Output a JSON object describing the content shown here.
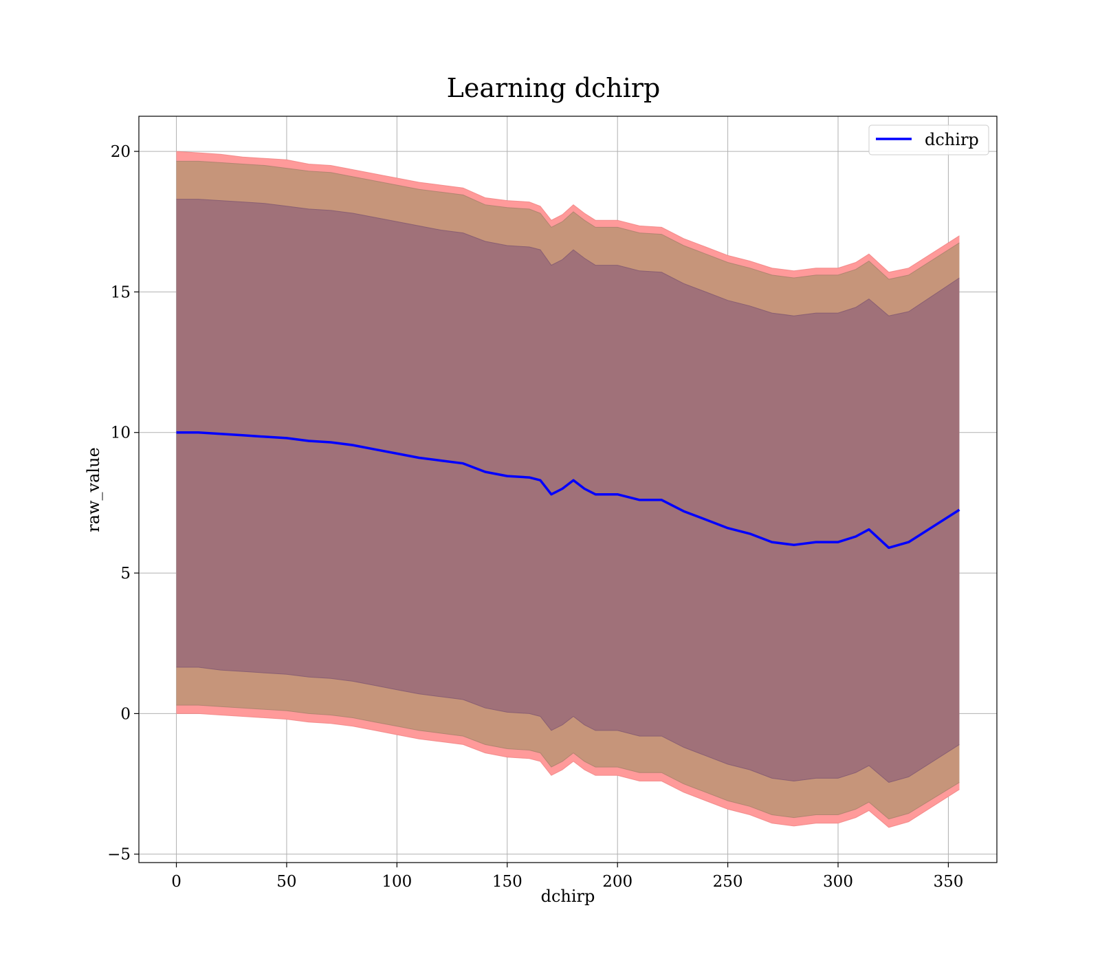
{
  "chart_data": {
    "type": "line",
    "title": "Learning dchirp",
    "xlabel": "dchirp",
    "ylabel": "raw_value",
    "xlim": [
      -17,
      372
    ],
    "ylim": [
      -5.3,
      21.25
    ],
    "xticks": [
      0,
      50,
      100,
      150,
      200,
      250,
      300,
      350
    ],
    "yticks": [
      -5,
      0,
      5,
      10,
      15,
      20
    ],
    "xtick_labels": [
      "0",
      "50",
      "100",
      "150",
      "200",
      "250",
      "300",
      "350"
    ],
    "ytick_labels": [
      "−5",
      "0",
      "5",
      "10",
      "15",
      "20"
    ],
    "grid": true,
    "legend": {
      "position": "top-right",
      "entries": [
        "dchirp"
      ]
    },
    "colors": {
      "line": "#0000ff",
      "outer_band": "#ff9a9a",
      "middle_band": "#c6957a",
      "inner_band": "#a07179",
      "grid": "#b0b0b0"
    },
    "x": [
      0,
      10,
      20,
      30,
      40,
      50,
      60,
      70,
      80,
      90,
      100,
      110,
      120,
      130,
      140,
      150,
      160,
      165,
      170,
      175,
      180,
      185,
      190,
      200,
      210,
      220,
      230,
      240,
      250,
      260,
      270,
      280,
      290,
      300,
      308,
      314,
      323,
      332,
      355
    ],
    "series": [
      {
        "name": "dchirp",
        "values": [
          10.0,
          10.0,
          9.95,
          9.9,
          9.85,
          9.8,
          9.7,
          9.65,
          9.55,
          9.4,
          9.25,
          9.1,
          9.0,
          8.9,
          8.6,
          8.45,
          8.4,
          8.3,
          7.8,
          8.0,
          8.3,
          8.0,
          7.8,
          7.8,
          7.6,
          7.6,
          7.2,
          6.9,
          6.6,
          6.4,
          6.1,
          6.0,
          6.1,
          6.1,
          6.3,
          6.55,
          5.9,
          6.1,
          7.25
        ]
      },
      {
        "name": "outer_upper",
        "values": [
          20.0,
          19.95,
          19.9,
          19.8,
          19.75,
          19.7,
          19.55,
          19.5,
          19.35,
          19.2,
          19.05,
          18.9,
          18.8,
          18.7,
          18.35,
          18.25,
          18.2,
          18.05,
          17.55,
          17.75,
          18.1,
          17.8,
          17.55,
          17.55,
          17.35,
          17.3,
          16.9,
          16.6,
          16.3,
          16.1,
          15.85,
          15.75,
          15.85,
          15.85,
          16.05,
          16.35,
          15.7,
          15.85,
          17.0
        ]
      },
      {
        "name": "middle_upper",
        "values": [
          19.65,
          19.65,
          19.6,
          19.55,
          19.5,
          19.4,
          19.3,
          19.25,
          19.1,
          18.95,
          18.8,
          18.65,
          18.55,
          18.45,
          18.1,
          18.0,
          17.95,
          17.8,
          17.3,
          17.5,
          17.85,
          17.55,
          17.3,
          17.3,
          17.1,
          17.05,
          16.65,
          16.35,
          16.05,
          15.85,
          15.6,
          15.5,
          15.6,
          15.6,
          15.8,
          16.1,
          15.45,
          15.6,
          16.75
        ]
      },
      {
        "name": "inner_upper",
        "values": [
          18.3,
          18.3,
          18.25,
          18.2,
          18.15,
          18.05,
          17.95,
          17.9,
          17.8,
          17.65,
          17.5,
          17.35,
          17.2,
          17.1,
          16.8,
          16.65,
          16.6,
          16.5,
          15.95,
          16.15,
          16.5,
          16.2,
          15.95,
          15.95,
          15.75,
          15.7,
          15.3,
          15.0,
          14.7,
          14.5,
          14.25,
          14.15,
          14.25,
          14.25,
          14.45,
          14.75,
          14.15,
          14.3,
          15.5
        ]
      },
      {
        "name": "inner_lower",
        "values": [
          1.65,
          1.65,
          1.55,
          1.5,
          1.45,
          1.4,
          1.3,
          1.25,
          1.15,
          1.0,
          0.85,
          0.7,
          0.6,
          0.5,
          0.2,
          0.05,
          0.0,
          -0.1,
          -0.6,
          -0.4,
          -0.1,
          -0.4,
          -0.6,
          -0.6,
          -0.8,
          -0.8,
          -1.2,
          -1.5,
          -1.8,
          -2.0,
          -2.3,
          -2.4,
          -2.3,
          -2.3,
          -2.1,
          -1.85,
          -2.45,
          -2.25,
          -1.1
        ]
      },
      {
        "name": "middle_lower",
        "values": [
          0.3,
          0.3,
          0.25,
          0.2,
          0.15,
          0.1,
          0.0,
          -0.05,
          -0.15,
          -0.3,
          -0.45,
          -0.6,
          -0.7,
          -0.8,
          -1.1,
          -1.25,
          -1.3,
          -1.4,
          -1.9,
          -1.7,
          -1.4,
          -1.7,
          -1.9,
          -1.9,
          -2.1,
          -2.1,
          -2.5,
          -2.8,
          -3.1,
          -3.3,
          -3.6,
          -3.7,
          -3.6,
          -3.6,
          -3.4,
          -3.15,
          -3.75,
          -3.55,
          -2.45
        ]
      },
      {
        "name": "outer_lower",
        "values": [
          0.0,
          0.0,
          -0.05,
          -0.1,
          -0.15,
          -0.2,
          -0.3,
          -0.35,
          -0.45,
          -0.6,
          -0.75,
          -0.9,
          -1.0,
          -1.1,
          -1.4,
          -1.55,
          -1.6,
          -1.7,
          -2.2,
          -2.0,
          -1.7,
          -2.0,
          -2.2,
          -2.2,
          -2.4,
          -2.4,
          -2.8,
          -3.1,
          -3.4,
          -3.6,
          -3.9,
          -4.0,
          -3.9,
          -3.9,
          -3.7,
          -3.45,
          -4.05,
          -3.85,
          -2.7
        ]
      }
    ]
  }
}
